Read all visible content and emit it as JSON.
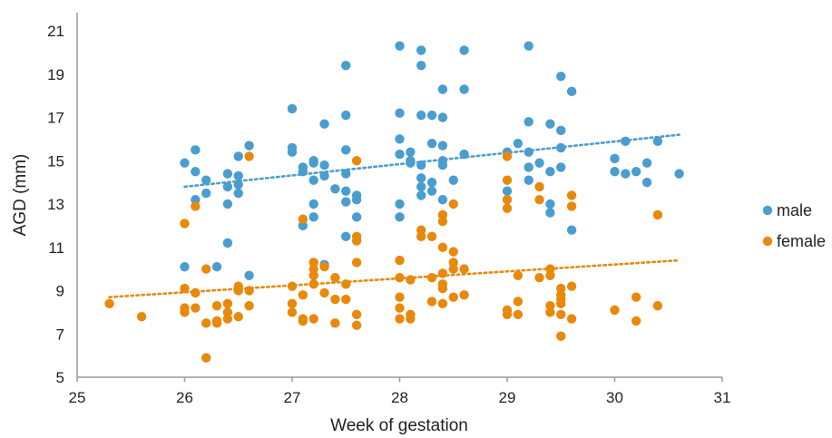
{
  "chart_data": {
    "type": "scatter",
    "title": "",
    "xlabel": "Week of gestation",
    "ylabel": "AGD (mm)",
    "xlim": [
      25,
      31
    ],
    "ylim": [
      5,
      21
    ],
    "x_ticks": [
      "25",
      "26",
      "27",
      "28",
      "29",
      "30",
      "31"
    ],
    "y_ticks": [
      "5",
      "7",
      "9",
      "11",
      "13",
      "15",
      "17",
      "19",
      "21"
    ],
    "grid": false,
    "legend_position": "right",
    "series": [
      {
        "name": "male",
        "color": "#4A9DCF",
        "trendline": {
          "type": "linear",
          "from": [
            26.0,
            13.8
          ],
          "to": [
            30.6,
            16.2
          ]
        },
        "points": [
          [
            26.0,
            14.9
          ],
          [
            26.0,
            10.1
          ],
          [
            26.1,
            15.5
          ],
          [
            26.1,
            14.5
          ],
          [
            26.1,
            13.2
          ],
          [
            26.2,
            14.1
          ],
          [
            26.2,
            13.5
          ],
          [
            26.3,
            10.1
          ],
          [
            26.4,
            14.4
          ],
          [
            26.4,
            13.8
          ],
          [
            26.4,
            13.0
          ],
          [
            26.4,
            11.2
          ],
          [
            26.5,
            15.2
          ],
          [
            26.5,
            14.3
          ],
          [
            26.5,
            13.9
          ],
          [
            26.5,
            13.5
          ],
          [
            26.6,
            15.7
          ],
          [
            26.6,
            9.7
          ],
          [
            27.0,
            17.4
          ],
          [
            27.0,
            15.6
          ],
          [
            27.0,
            15.4
          ],
          [
            27.1,
            14.7
          ],
          [
            27.1,
            14.5
          ],
          [
            27.1,
            12.0
          ],
          [
            27.2,
            15.0
          ],
          [
            27.2,
            14.9
          ],
          [
            27.2,
            14.1
          ],
          [
            27.2,
            13.0
          ],
          [
            27.2,
            12.4
          ],
          [
            27.3,
            16.7
          ],
          [
            27.3,
            14.8
          ],
          [
            27.3,
            14.3
          ],
          [
            27.3,
            10.2
          ],
          [
            27.4,
            13.7
          ],
          [
            27.5,
            19.4
          ],
          [
            27.5,
            17.1
          ],
          [
            27.5,
            15.5
          ],
          [
            27.5,
            14.4
          ],
          [
            27.5,
            13.6
          ],
          [
            27.5,
            13.1
          ],
          [
            27.5,
            11.5
          ],
          [
            27.6,
            13.4
          ],
          [
            27.6,
            13.2
          ],
          [
            27.6,
            12.4
          ],
          [
            28.0,
            20.3
          ],
          [
            28.0,
            17.2
          ],
          [
            28.0,
            16.0
          ],
          [
            28.0,
            15.3
          ],
          [
            28.0,
            13.0
          ],
          [
            28.0,
            12.4
          ],
          [
            28.1,
            15.4
          ],
          [
            28.1,
            15.0
          ],
          [
            28.1,
            14.9
          ],
          [
            28.2,
            20.1
          ],
          [
            28.2,
            19.4
          ],
          [
            28.2,
            17.1
          ],
          [
            28.2,
            14.8
          ],
          [
            28.2,
            14.2
          ],
          [
            28.2,
            13.8
          ],
          [
            28.2,
            13.4
          ],
          [
            28.3,
            17.1
          ],
          [
            28.3,
            15.8
          ],
          [
            28.3,
            14.0
          ],
          [
            28.3,
            13.6
          ],
          [
            28.4,
            18.3
          ],
          [
            28.4,
            17.0
          ],
          [
            28.4,
            15.7
          ],
          [
            28.4,
            15.0
          ],
          [
            28.4,
            14.8
          ],
          [
            28.4,
            13.2
          ],
          [
            28.5,
            14.1
          ],
          [
            28.6,
            20.1
          ],
          [
            28.6,
            18.3
          ],
          [
            28.6,
            15.3
          ],
          [
            29.0,
            15.4
          ],
          [
            29.0,
            13.6
          ],
          [
            29.1,
            15.8
          ],
          [
            29.2,
            20.3
          ],
          [
            29.2,
            16.8
          ],
          [
            29.2,
            15.4
          ],
          [
            29.2,
            14.7
          ],
          [
            29.2,
            14.1
          ],
          [
            29.3,
            14.9
          ],
          [
            29.4,
            16.7
          ],
          [
            29.4,
            14.5
          ],
          [
            29.4,
            13.0
          ],
          [
            29.4,
            12.6
          ],
          [
            29.5,
            18.9
          ],
          [
            29.5,
            16.4
          ],
          [
            29.5,
            15.6
          ],
          [
            29.5,
            14.7
          ],
          [
            29.6,
            18.2
          ],
          [
            29.6,
            11.8
          ],
          [
            30.0,
            15.1
          ],
          [
            30.0,
            14.5
          ],
          [
            30.1,
            15.9
          ],
          [
            30.1,
            14.4
          ],
          [
            30.2,
            14.5
          ],
          [
            30.3,
            14.9
          ],
          [
            30.3,
            14.0
          ],
          [
            30.4,
            15.9
          ],
          [
            30.6,
            14.4
          ]
        ]
      },
      {
        "name": "female",
        "color": "#E8890C",
        "trendline": {
          "type": "linear",
          "from": [
            25.3,
            8.7
          ],
          "to": [
            30.6,
            10.4
          ]
        },
        "points": [
          [
            25.3,
            8.4
          ],
          [
            25.6,
            7.8
          ],
          [
            26.0,
            12.1
          ],
          [
            26.0,
            9.1
          ],
          [
            26.0,
            8.2
          ],
          [
            26.0,
            8.0
          ],
          [
            26.1,
            12.9
          ],
          [
            26.1,
            8.9
          ],
          [
            26.1,
            8.2
          ],
          [
            26.2,
            10.0
          ],
          [
            26.2,
            7.5
          ],
          [
            26.2,
            5.9
          ],
          [
            26.3,
            8.3
          ],
          [
            26.3,
            7.6
          ],
          [
            26.3,
            7.5
          ],
          [
            26.4,
            8.4
          ],
          [
            26.4,
            8.0
          ],
          [
            26.4,
            7.7
          ],
          [
            26.5,
            9.2
          ],
          [
            26.5,
            9.0
          ],
          [
            26.5,
            7.8
          ],
          [
            26.6,
            15.2
          ],
          [
            26.6,
            9.0
          ],
          [
            26.6,
            8.3
          ],
          [
            27.0,
            9.2
          ],
          [
            27.0,
            8.4
          ],
          [
            27.0,
            8.0
          ],
          [
            27.1,
            12.3
          ],
          [
            27.1,
            8.8
          ],
          [
            27.1,
            7.7
          ],
          [
            27.1,
            7.6
          ],
          [
            27.2,
            10.3
          ],
          [
            27.2,
            10.0
          ],
          [
            27.2,
            9.7
          ],
          [
            27.2,
            9.3
          ],
          [
            27.2,
            7.7
          ],
          [
            27.3,
            10.1
          ],
          [
            27.3,
            8.9
          ],
          [
            27.4,
            9.6
          ],
          [
            27.4,
            8.6
          ],
          [
            27.4,
            7.5
          ],
          [
            27.5,
            9.3
          ],
          [
            27.5,
            8.6
          ],
          [
            27.6,
            15.0
          ],
          [
            27.6,
            11.5
          ],
          [
            27.6,
            11.3
          ],
          [
            27.6,
            10.3
          ],
          [
            27.6,
            7.9
          ],
          [
            27.6,
            7.4
          ],
          [
            28.0,
            10.4
          ],
          [
            28.0,
            9.6
          ],
          [
            28.0,
            8.7
          ],
          [
            28.0,
            8.2
          ],
          [
            28.0,
            7.7
          ],
          [
            28.1,
            9.5
          ],
          [
            28.1,
            7.9
          ],
          [
            28.1,
            7.7
          ],
          [
            28.2,
            11.8
          ],
          [
            28.2,
            11.5
          ],
          [
            28.3,
            11.5
          ],
          [
            28.3,
            9.6
          ],
          [
            28.3,
            8.5
          ],
          [
            28.4,
            12.5
          ],
          [
            28.4,
            12.2
          ],
          [
            28.4,
            11.0
          ],
          [
            28.4,
            9.8
          ],
          [
            28.4,
            9.3
          ],
          [
            28.4,
            9.1
          ],
          [
            28.4,
            8.4
          ],
          [
            28.5,
            13.0
          ],
          [
            28.5,
            10.8
          ],
          [
            28.5,
            10.3
          ],
          [
            28.5,
            10.0
          ],
          [
            28.5,
            8.7
          ],
          [
            28.6,
            10.0
          ],
          [
            28.6,
            8.8
          ],
          [
            29.0,
            15.2
          ],
          [
            29.0,
            14.1
          ],
          [
            29.0,
            13.2
          ],
          [
            29.0,
            12.8
          ],
          [
            29.0,
            8.1
          ],
          [
            29.0,
            7.9
          ],
          [
            29.1,
            9.7
          ],
          [
            29.1,
            8.5
          ],
          [
            29.1,
            7.9
          ],
          [
            29.3,
            13.8
          ],
          [
            29.3,
            13.2
          ],
          [
            29.3,
            9.6
          ],
          [
            29.4,
            10.0
          ],
          [
            29.4,
            9.7
          ],
          [
            29.4,
            8.3
          ],
          [
            29.4,
            8.0
          ],
          [
            29.5,
            9.1
          ],
          [
            29.5,
            8.8
          ],
          [
            29.5,
            8.6
          ],
          [
            29.5,
            8.4
          ],
          [
            29.5,
            7.9
          ],
          [
            29.5,
            6.9
          ],
          [
            29.6,
            13.4
          ],
          [
            29.6,
            12.9
          ],
          [
            29.6,
            9.2
          ],
          [
            29.6,
            7.7
          ],
          [
            30.0,
            8.1
          ],
          [
            30.2,
            8.7
          ],
          [
            30.2,
            7.6
          ],
          [
            30.4,
            12.5
          ],
          [
            30.4,
            8.3
          ]
        ]
      }
    ]
  }
}
